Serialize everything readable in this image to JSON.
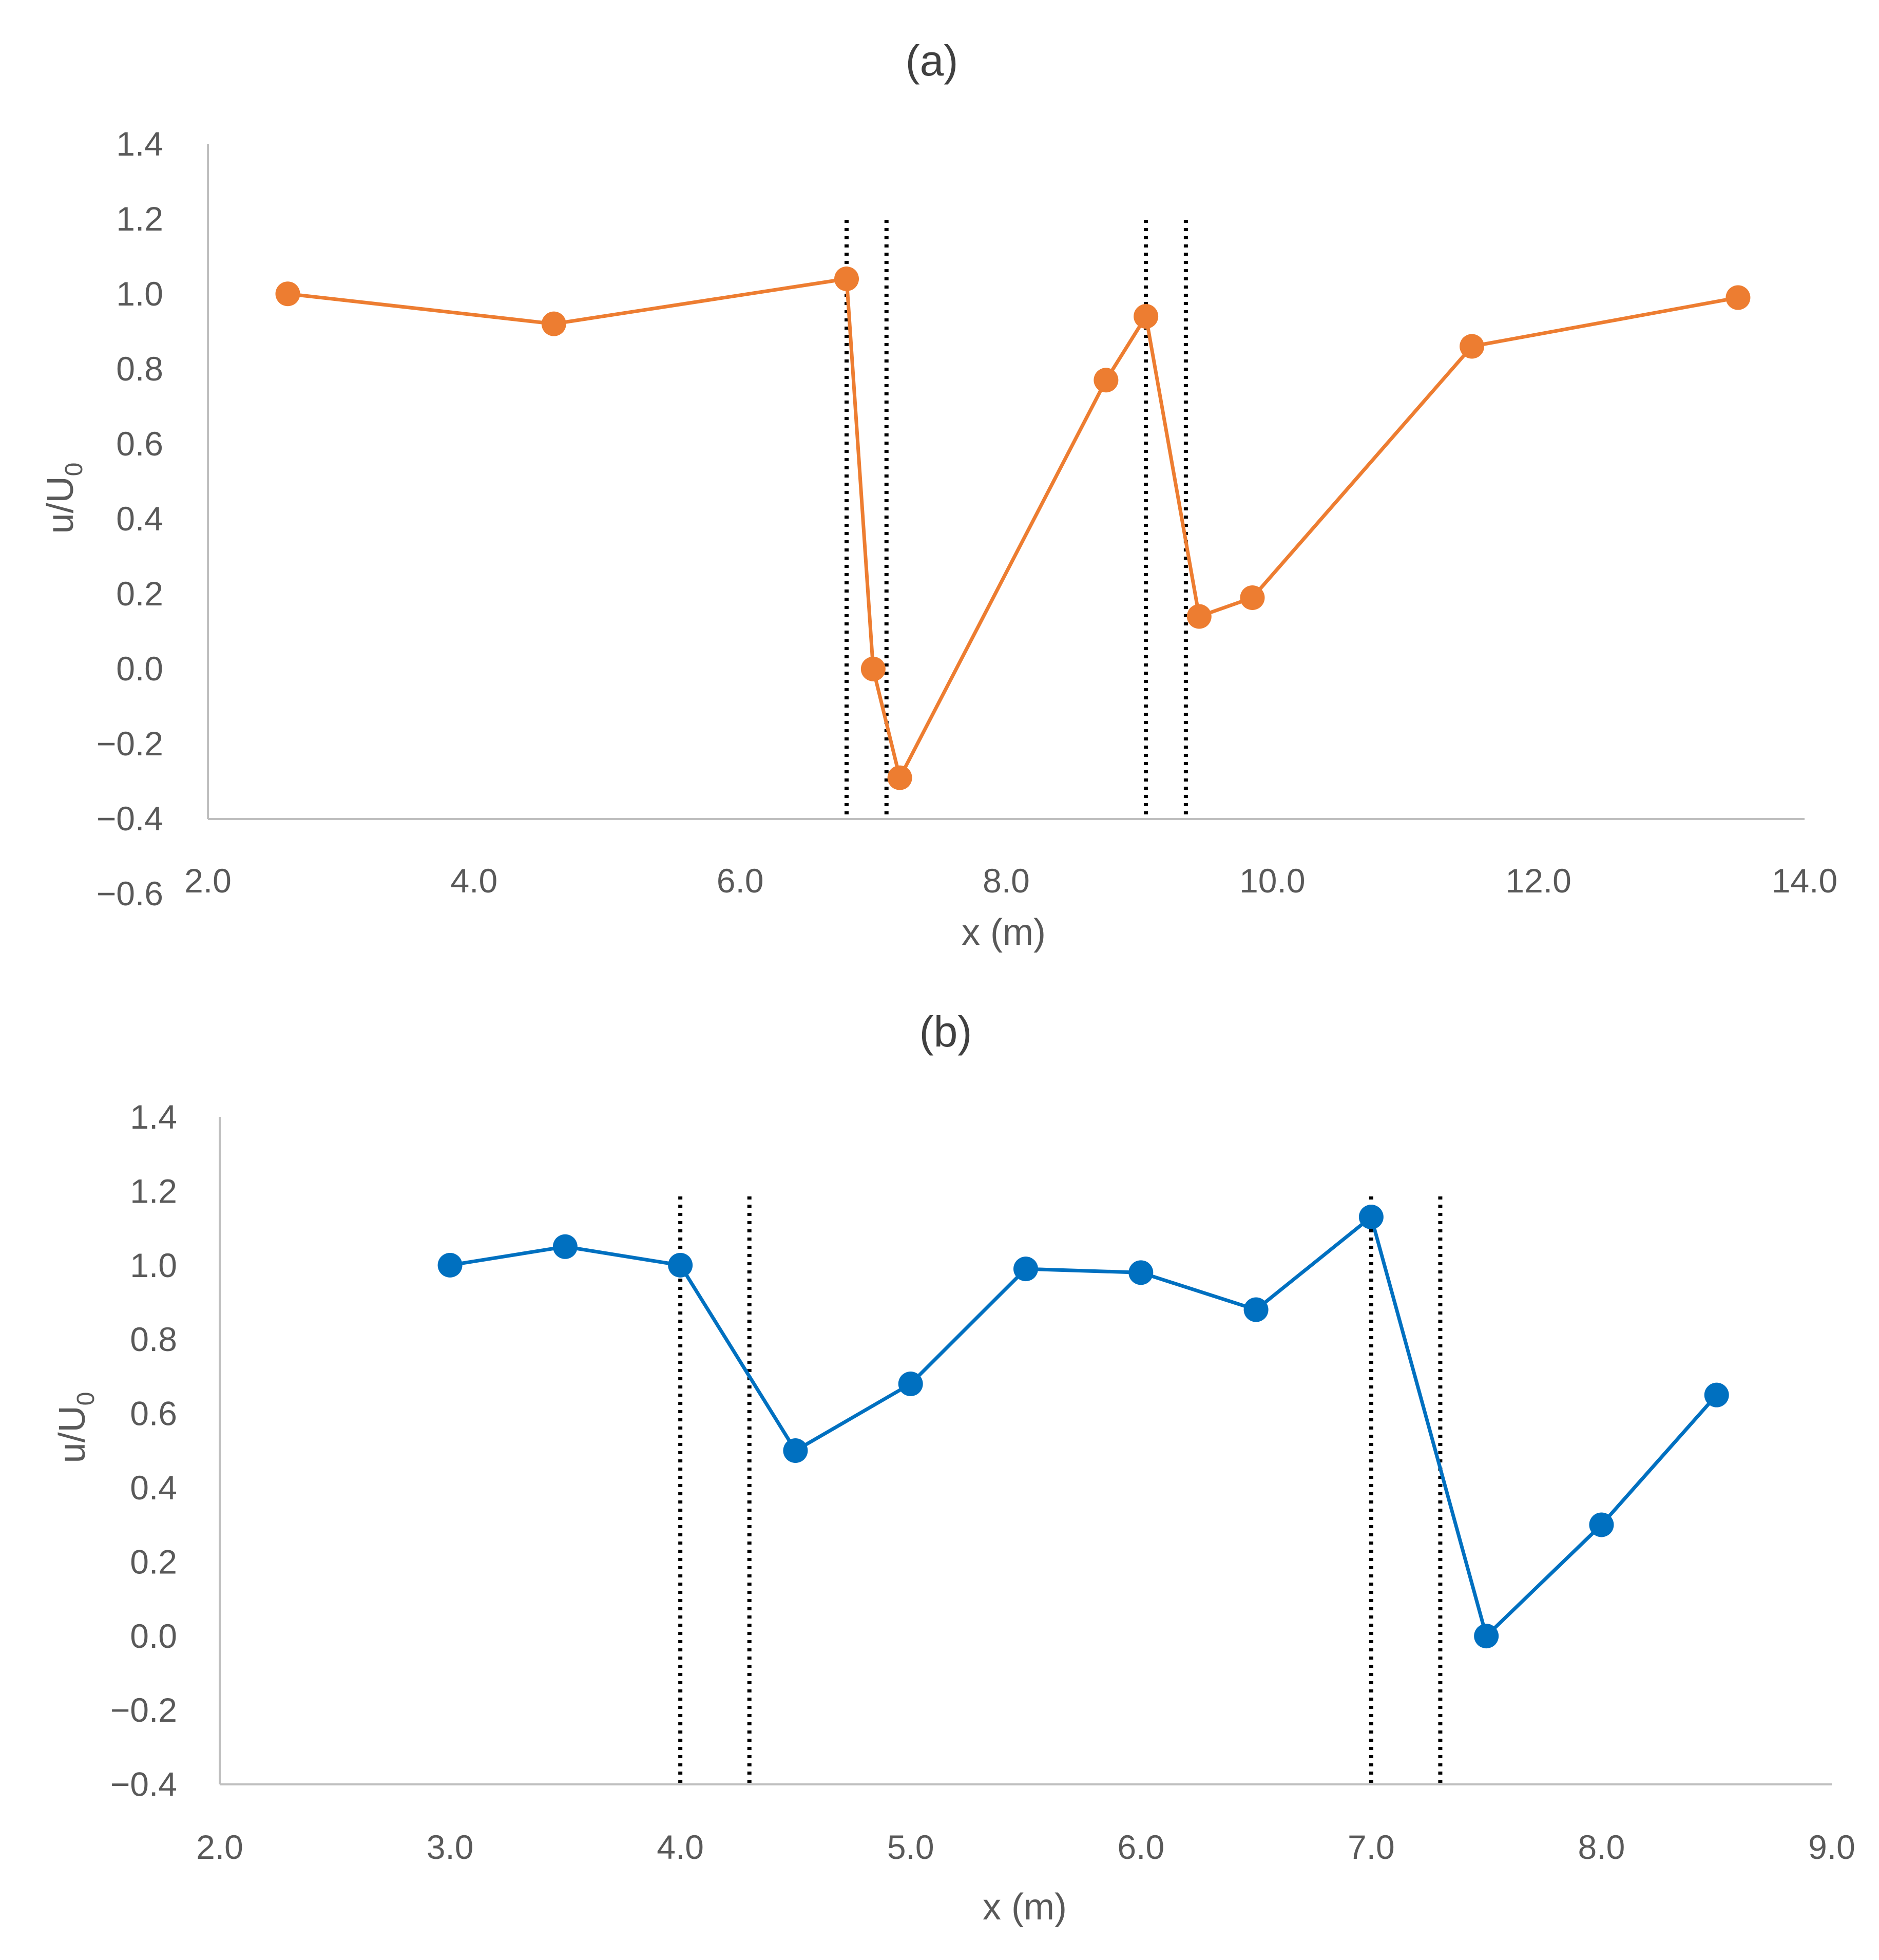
{
  "chart_data": [
    {
      "type": "line",
      "title": "(a)",
      "xlabel": "x (m)",
      "ylabel": "u/U",
      "ylabel_subscript": "0",
      "xlim": [
        2.0,
        14.0
      ],
      "ylim": [
        -0.4,
        1.4
      ],
      "x_ticks": [
        "2.0",
        "4.0",
        "6.0",
        "8.0",
        "10.0",
        "12.0",
        "14.0"
      ],
      "y_ticks": [
        "-0.6",
        "-0.4",
        "-0.2",
        "0.0",
        "0.2",
        "0.4",
        "0.6",
        "0.8",
        "1.0",
        "1.2",
        "1.4"
      ],
      "color": "#ED7D31",
      "series": [
        {
          "x": [
            2.6,
            4.6,
            6.8,
            7.0,
            7.2,
            8.75,
            9.05,
            9.45,
            9.85,
            11.5,
            13.5
          ],
          "y": [
            1.0,
            0.92,
            1.04,
            0.0,
            -0.29,
            0.77,
            0.94,
            0.14,
            0.19,
            0.86,
            0.99
          ]
        }
      ],
      "vertical_lines": [
        6.8,
        7.1,
        9.05,
        9.35
      ],
      "grid": false
    },
    {
      "type": "line",
      "title": "(b)",
      "xlabel": "x (m)",
      "ylabel": "u/U",
      "ylabel_subscript": "0",
      "xlim": [
        2.0,
        9.0
      ],
      "ylim": [
        -0.4,
        1.4
      ],
      "x_ticks": [
        "2.0",
        "3.0",
        "4.0",
        "5.0",
        "6.0",
        "7.0",
        "8.0",
        "9.0"
      ],
      "y_ticks": [
        "-0.4",
        "-0.2",
        "0.0",
        "0.2",
        "0.4",
        "0.6",
        "0.8",
        "1.0",
        "1.2",
        "1.4"
      ],
      "color": "#0070C0",
      "series": [
        {
          "x": [
            3.0,
            3.5,
            4.0,
            4.5,
            5.0,
            5.5,
            6.0,
            6.5,
            7.0,
            7.5,
            8.0,
            8.5
          ],
          "y": [
            1.0,
            1.05,
            1.0,
            0.5,
            0.68,
            0.99,
            0.98,
            0.88,
            1.13,
            0.0,
            0.3,
            0.65
          ]
        }
      ],
      "vertical_lines": [
        4.0,
        4.3,
        7.0,
        7.3
      ],
      "grid": false
    }
  ]
}
